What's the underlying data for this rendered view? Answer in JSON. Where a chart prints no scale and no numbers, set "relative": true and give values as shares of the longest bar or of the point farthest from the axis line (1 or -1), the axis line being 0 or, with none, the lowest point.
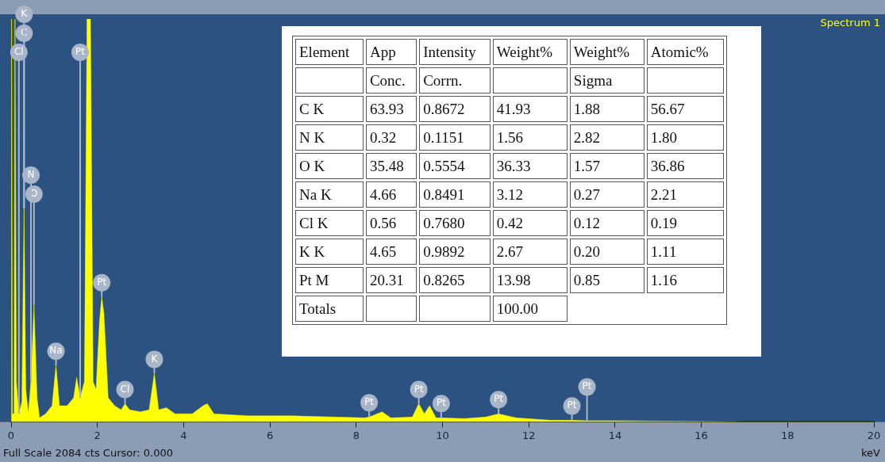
{
  "chart_data": [
    {
      "type": "area",
      "title": "Spectrum 1",
      "xlabel": "keV",
      "relative": true,
      "xlim": [
        0,
        20
      ],
      "xticks": [
        0,
        2,
        4,
        6,
        8,
        10,
        12,
        14,
        16,
        18,
        20
      ],
      "grid": false,
      "legend": false,
      "series": [
        {
          "color": "#ffff00",
          "x": [
            0,
            0.01,
            0.03,
            0.07,
            0.09,
            0.12,
            0.18,
            0.25,
            0.3,
            0.34,
            0.4,
            0.46,
            0.53,
            0.6,
            0.66,
            0.8,
            0.95,
            1.04,
            1.12,
            1.3,
            1.45,
            1.52,
            1.6,
            1.7,
            1.76,
            1.84,
            1.9,
            1.97,
            2.05,
            2.1,
            2.15,
            2.25,
            2.4,
            2.55,
            2.64,
            2.75,
            3.0,
            3.2,
            3.32,
            3.42,
            3.6,
            3.8,
            4.2,
            4.45,
            4.55,
            4.7,
            5.5,
            6.5,
            7.5,
            8.2,
            8.3,
            8.6,
            8.8,
            9.3,
            9.45,
            9.58,
            9.7,
            9.85,
            9.97,
            10.5,
            11.0,
            11.3,
            11.7,
            12.5,
            13.0,
            13.35,
            14,
            15,
            16.5,
            17,
            20
          ],
          "values": [
            0,
            1,
            0.02,
            0.02,
            1,
            0.1,
            0.02,
            0.05,
            0.53,
            0.08,
            0.02,
            0.1,
            0.29,
            0.06,
            0.01,
            0.02,
            0.04,
            0.14,
            0.04,
            0.04,
            0.06,
            0.11,
            0.06,
            0.1,
            1,
            1,
            0.1,
            0.08,
            0.25,
            0.31,
            0.27,
            0.06,
            0.04,
            0.03,
            0.045,
            0.03,
            0.025,
            0.03,
            0.12,
            0.03,
            0.035,
            0.02,
            0.02,
            0.04,
            0.045,
            0.02,
            0.015,
            0.015,
            0.012,
            0.01,
            0.012,
            0.025,
            0.01,
            0.012,
            0.045,
            0.02,
            0.04,
            0.01,
            0.01,
            0.008,
            0.012,
            0.02,
            0.01,
            0.004,
            0.004,
            0.003,
            0.003,
            0.002,
            0.001,
            0,
            0
          ]
        }
      ],
      "annotations": [
        "Full Scale 2084 cts Cursor: 0.000",
        {
          "text": "Cl",
          "x": 0.18,
          "y": 0.02
        },
        {
          "text": "C",
          "x": 0.3,
          "y": 0.53
        },
        {
          "text": "K",
          "x": 0.3,
          "y": 0.53
        },
        {
          "text": "O",
          "x": 0.53,
          "y": 0.29
        },
        {
          "text": "N",
          "x": 0.46,
          "y": 0.1
        },
        {
          "text": "Pt",
          "x": 1.6,
          "y": 0.06
        },
        {
          "text": "Pt",
          "x": 2.1,
          "y": 0.31
        },
        {
          "text": "Na",
          "x": 1.04,
          "y": 0.14
        },
        {
          "text": "Cl",
          "x": 2.64,
          "y": 0.045
        },
        {
          "text": "K",
          "x": 3.32,
          "y": 0.12
        },
        {
          "text": "Pt",
          "x": 8.3,
          "y": 0.012
        },
        {
          "text": "Pt",
          "x": 9.45,
          "y": 0.045
        },
        {
          "text": "Pt",
          "x": 9.97,
          "y": 0.01
        },
        {
          "text": "Pt",
          "x": 11.3,
          "y": 0.02
        },
        {
          "text": "Pt",
          "x": 13.0,
          "y": 0.004
        },
        {
          "text": "Pt",
          "x": 13.35,
          "y": 0.003
        }
      ]
    },
    {
      "type": "other",
      "categories": [
        "Element",
        "App",
        "Intensity",
        "Weight%",
        "Weight%",
        "Atomic%"
      ],
      "cells": [
        [
          null,
          "Conc.",
          "Corrn.",
          null,
          "Sigma",
          null
        ],
        [
          "C K",
          "63.93",
          "0.8672",
          "41.93",
          "1.88",
          "56.67"
        ],
        [
          "N K",
          "0.32",
          "0.1151",
          "1.56",
          "2.82",
          "1.80"
        ],
        [
          "O K",
          "35.48",
          "0.5554",
          "36.33",
          "1.57",
          "36.86"
        ],
        [
          "Na K",
          "4.66",
          "0.8491",
          "3.12",
          "0.27",
          "2.21"
        ],
        [
          "Cl K",
          "0.56",
          "0.7680",
          "0.42",
          "0.12",
          "0.19"
        ],
        [
          "K K",
          "4.65",
          "0.9892",
          "2.67",
          "0.20",
          "1.11"
        ],
        [
          "Pt M",
          "20.31",
          "0.8265",
          "13.98",
          "0.85",
          "1.16"
        ],
        [
          "Totals",
          null,
          null,
          "100.00"
        ]
      ]
    }
  ]
}
